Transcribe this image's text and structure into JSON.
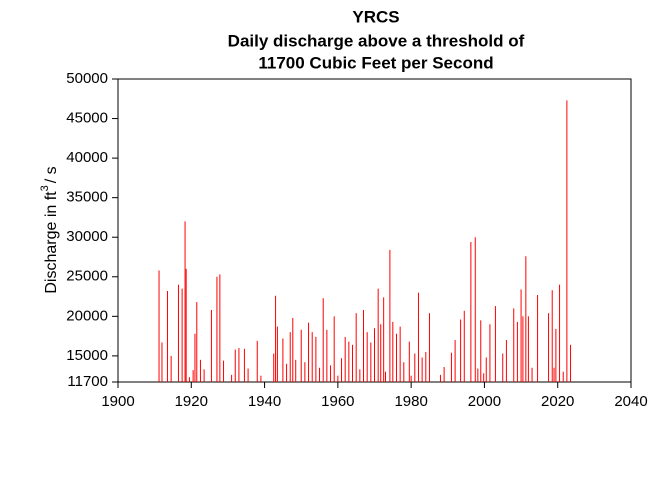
{
  "chart_data": {
    "type": "spike",
    "title": [
      "YRCS",
      "Daily discharge above a threshold of",
      "11700 Cubic Feet per Second"
    ],
    "ylabel": [
      "Discharge in ft",
      "3",
      "/ s"
    ],
    "color": "#ff0000",
    "x": [
      1911.2,
      1912,
      1913.5,
      1914.5,
      1916.5,
      1917.5,
      1918.3,
      1918.6,
      1919.5,
      1920.5,
      1921,
      1921.5,
      1922.5,
      1923.5,
      1925.5,
      1927,
      1927.8,
      1928.8,
      1931,
      1932,
      1933,
      1934.5,
      1935.5,
      1938,
      1939,
      1942.5,
      1943,
      1943.5,
      1945,
      1946,
      1947,
      1947.7,
      1948.5,
      1950,
      1951,
      1952,
      1953,
      1954,
      1955,
      1956,
      1957,
      1958,
      1959,
      1960,
      1961,
      1962,
      1963,
      1964,
      1965,
      1966,
      1967,
      1968,
      1969,
      1970,
      1971,
      1971.7,
      1972.5,
      1973,
      1974.2,
      1975,
      1976,
      1977,
      1978,
      1979.5,
      1980,
      1981,
      1982,
      1983,
      1984,
      1985,
      1988,
      1989,
      1991,
      1992,
      1993.5,
      1994.5,
      1996.3,
      1997.5,
      1998.2,
      1999,
      1999.8,
      2000.5,
      2001.5,
      2003,
      2005,
      2006,
      2008,
      2009,
      2010,
      2010.5,
      2011.3,
      2012,
      2013,
      2014.5,
      2017.5,
      2018.5,
      2019,
      2019.5,
      2020.5,
      2021.5,
      2022.5,
      2023.5
    ],
    "values": [
      25800,
      16700,
      23200,
      15000,
      24000,
      23500,
      32000,
      26000,
      12300,
      13200,
      17800,
      21800,
      14500,
      13300,
      20800,
      25000,
      25300,
      14400,
      12600,
      15800,
      16000,
      15900,
      13400,
      16900,
      12500,
      15300,
      22600,
      18700,
      17200,
      14000,
      18000,
      19800,
      14500,
      18300,
      14200,
      19200,
      18000,
      17400,
      13500,
      22300,
      18300,
      13800,
      20000,
      12500,
      14700,
      17400,
      16800,
      16400,
      20400,
      13300,
      20800,
      18000,
      16700,
      18500,
      23500,
      19000,
      22400,
      13000,
      28400,
      19300,
      17800,
      18700,
      14200,
      16800,
      12500,
      15300,
      23000,
      14800,
      15500,
      20400,
      12600,
      13600,
      15400,
      17000,
      19600,
      20700,
      29400,
      30000,
      13400,
      19500,
      12800,
      14800,
      19000,
      21300,
      15300,
      17000,
      21000,
      19300,
      23400,
      20000,
      27600,
      20000,
      13500,
      22700,
      20400,
      23300,
      13500,
      18400,
      24000,
      13000,
      47300,
      16400
    ],
    "xlim": [
      1900,
      2040
    ],
    "xticks": [
      1900,
      1920,
      1940,
      1960,
      1980,
      2000,
      2020,
      2040
    ],
    "ylim": [
      11700,
      50000
    ],
    "yticks": [
      11700,
      15000,
      20000,
      25000,
      30000,
      35000,
      40000,
      45000,
      50000
    ]
  }
}
